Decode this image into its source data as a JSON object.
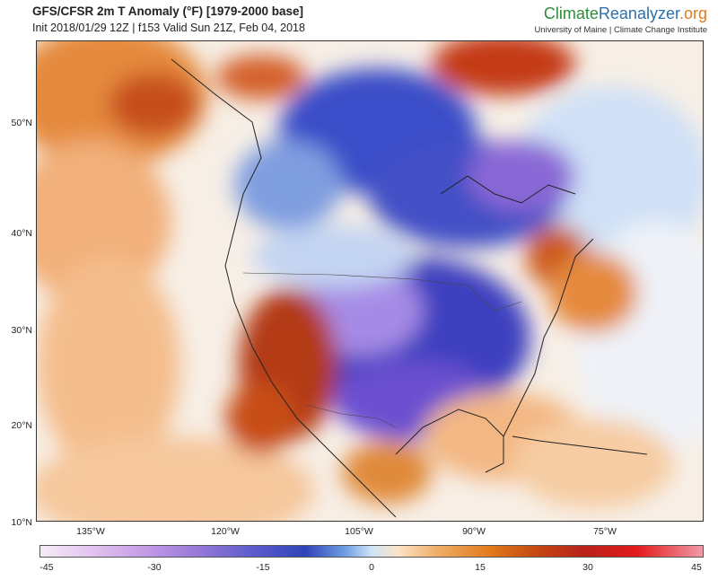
{
  "header": {
    "title": "GFS/CFSR 2m T Anomaly (°F) [1979-2000 base]",
    "subtitle": "Init 2018/01/29 12Z | f153 Valid Sun 21Z, Feb 04, 2018"
  },
  "brand": {
    "name_part1": "Climate",
    "name_part2": "Reanalyzer",
    "name_part3": ".org",
    "affiliation": "University of Maine | Climate Change Institute"
  },
  "map": {
    "lat_labels": [
      "50°N",
      "40°N",
      "30°N",
      "20°N",
      "10°N"
    ],
    "lon_labels": [
      "135°W",
      "120°W",
      "105°W",
      "90°W",
      "75°W"
    ],
    "colors": {
      "strong_cold": "#6a3fc4",
      "cold": "#3448c0",
      "mild_cold": "#a9c6ef",
      "neutral": "#f7f4f0",
      "mild_warm": "#f6c79c",
      "warm": "#e07a2a",
      "strong_warm": "#b23a12"
    }
  },
  "colorbar": {
    "labels": [
      "-45",
      "-30",
      "-15",
      "0",
      "15",
      "30",
      "45"
    ]
  }
}
